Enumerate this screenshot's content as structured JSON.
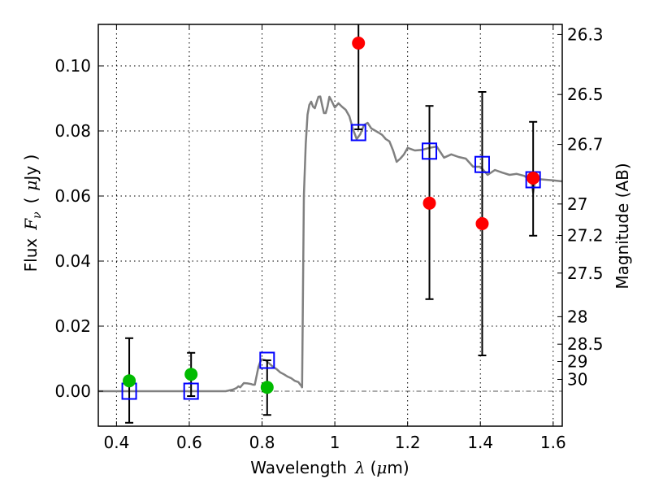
{
  "chart_data": {
    "type": "scatter",
    "title": "",
    "xlabel": "Wavelength",
    "xlabel_symbol": "λ",
    "xlabel_unit_open": "(",
    "xlabel_unit_mu": "μ",
    "xlabel_unit_rest": "m)",
    "ylabel_prefix": "Flux",
    "ylabel_symbol": "F",
    "ylabel_subscript": "ν",
    "ylabel_unit_open": "(",
    "ylabel_unit_mu": "μ",
    "ylabel_unit_rest": "Jy )",
    "y2label": "Magnitude (AB)",
    "xlim": [
      0.35,
      1.625
    ],
    "ylim": [
      -0.01075,
      0.11275
    ],
    "grid": true,
    "xticks": [
      {
        "value": 0.4,
        "label": "0.4"
      },
      {
        "value": 0.6,
        "label": "0.6"
      },
      {
        "value": 0.8,
        "label": "0.8"
      },
      {
        "value": 1.0,
        "label": "1"
      },
      {
        "value": 1.2,
        "label": "1.2"
      },
      {
        "value": 1.4,
        "label": "1.4"
      },
      {
        "value": 1.6,
        "label": "1.6"
      }
    ],
    "yticks": [
      {
        "value": 0.0,
        "label": "0.00"
      },
      {
        "value": 0.02,
        "label": "0.02"
      },
      {
        "value": 0.04,
        "label": "0.04"
      },
      {
        "value": 0.06,
        "label": "0.06"
      },
      {
        "value": 0.08,
        "label": "0.08"
      },
      {
        "value": 0.1,
        "label": "0.10"
      }
    ],
    "y2ticks": [
      {
        "mag": 26.3,
        "label": "26.3"
      },
      {
        "mag": 26.5,
        "label": "26.5"
      },
      {
        "mag": 26.7,
        "label": "26.7"
      },
      {
        "mag": 27,
        "label": "27"
      },
      {
        "mag": 27.2,
        "label": "27.2"
      },
      {
        "mag": 27.5,
        "label": "27.5"
      },
      {
        "mag": 28,
        "label": "28"
      },
      {
        "mag": 28.5,
        "label": "28.5"
      },
      {
        "mag": 29,
        "label": "29"
      },
      {
        "mag": 30,
        "label": "30"
      }
    ],
    "colors": {
      "model_line": "#808080",
      "model_band": "#0000ff",
      "detection": "#00bb00",
      "nir_detection": "#ff0000",
      "errorbar": "#000000",
      "zero_line": "#555555"
    },
    "series": [
      {
        "name": "model-spectrum",
        "type": "line",
        "x": [
          0.35,
          0.7,
          0.72,
          0.73,
          0.735,
          0.74,
          0.75,
          0.76,
          0.77,
          0.775,
          0.78,
          0.79,
          0.795,
          0.8,
          0.81,
          0.82,
          0.83,
          0.84,
          0.85,
          0.86,
          0.87,
          0.88,
          0.89,
          0.9,
          0.905,
          0.907,
          0.91,
          0.915,
          0.92,
          0.925,
          0.93,
          0.935,
          0.94,
          0.945,
          0.95,
          0.955,
          0.96,
          0.965,
          0.97,
          0.975,
          0.98,
          0.985,
          0.99,
          1.0,
          1.01,
          1.02,
          1.03,
          1.04,
          1.05,
          1.06,
          1.07,
          1.08,
          1.09,
          1.1,
          1.12,
          1.13,
          1.14,
          1.15,
          1.16,
          1.17,
          1.18,
          1.19,
          1.2,
          1.22,
          1.24,
          1.26,
          1.28,
          1.3,
          1.32,
          1.34,
          1.36,
          1.38,
          1.4,
          1.42,
          1.44,
          1.46,
          1.48,
          1.5,
          1.52,
          1.54,
          1.545,
          1.55,
          1.56,
          1.58,
          1.6,
          1.625
        ],
        "y": [
          0.0,
          0.0,
          0.0005,
          0.001,
          0.0015,
          0.0012,
          0.0025,
          0.0024,
          0.0022,
          0.002,
          0.002,
          0.0075,
          0.009,
          0.0098,
          0.0095,
          0.0085,
          0.0075,
          0.0068,
          0.0058,
          0.0052,
          0.0045,
          0.004,
          0.0032,
          0.0028,
          0.002,
          0.0018,
          0.0012,
          0.06,
          0.076,
          0.085,
          0.088,
          0.089,
          0.0875,
          0.087,
          0.0888,
          0.0905,
          0.0906,
          0.088,
          0.0855,
          0.0855,
          0.0875,
          0.0905,
          0.0895,
          0.0872,
          0.0885,
          0.0874,
          0.0865,
          0.0845,
          0.0805,
          0.0775,
          0.079,
          0.0818,
          0.0825,
          0.0808,
          0.0795,
          0.0788,
          0.0775,
          0.0768,
          0.074,
          0.0705,
          0.0715,
          0.0728,
          0.0748,
          0.074,
          0.0742,
          0.0748,
          0.0752,
          0.0718,
          0.0728,
          0.072,
          0.0715,
          0.069,
          0.069,
          0.0665,
          0.068,
          0.0672,
          0.0665,
          0.0668,
          0.0662,
          0.0648,
          0.061,
          0.0645,
          0.0652,
          0.065,
          0.0648,
          0.0645
        ]
      },
      {
        "name": "model-band-fluxes",
        "type": "marker-square",
        "x": [
          0.435,
          0.605,
          0.814,
          1.065,
          1.26,
          1.405,
          1.545
        ],
        "y": [
          0.0,
          0.0,
          0.0095,
          0.0795,
          0.0738,
          0.0697,
          0.065
        ]
      },
      {
        "name": "optical-detections",
        "type": "marker-circle-errorbar",
        "x": [
          0.435,
          0.605,
          0.814
        ],
        "y": [
          0.0032,
          0.0052,
          0.0012
        ],
        "yerr_low": [
          -0.0097,
          -0.0015,
          -0.0073
        ],
        "yerr_high": [
          0.0163,
          0.0118,
          0.0095
        ]
      },
      {
        "name": "nir-detections",
        "type": "marker-circle-errorbar",
        "x": [
          1.065,
          1.26,
          1.405,
          1.545
        ],
        "y": [
          0.107,
          0.0578,
          0.0515,
          0.0655
        ],
        "yerr_low": [
          0.0805,
          0.0283,
          0.011,
          0.0478
        ],
        "yerr_high": [
          0.125,
          0.0877,
          0.092,
          0.0828
        ]
      }
    ]
  }
}
